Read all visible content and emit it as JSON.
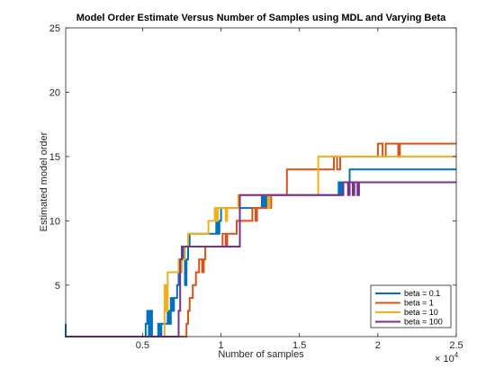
{
  "chart_data": {
    "type": "line",
    "title": "Model Order Estimate Versus Number of Samples using MDL and Varying Beta",
    "xlabel": "Number of samples",
    "ylabel": "Estimated model order",
    "x_exponent_label": "× 10",
    "x_exponent_power": "4",
    "xlim": [
      100,
      25000
    ],
    "ylim": [
      1,
      25
    ],
    "x_ticks": [
      5000,
      10000,
      15000,
      20000,
      25000
    ],
    "x_tick_labels": [
      "0.5",
      "1",
      "1.5",
      "2",
      "2.5"
    ],
    "y_ticks": [
      5,
      10,
      15,
      20,
      25
    ],
    "y_tick_labels": [
      "5",
      "10",
      "15",
      "20",
      "25"
    ],
    "grid": false,
    "legend_position": "bottom-right",
    "series": [
      {
        "name": "beta = 0.1",
        "color": "#0072BD",
        "points": [
          [
            100,
            2
          ],
          [
            100,
            1
          ],
          [
            5200,
            1
          ],
          [
            5200,
            2
          ],
          [
            5300,
            2
          ],
          [
            5300,
            3
          ],
          [
            5400,
            3
          ],
          [
            5400,
            1
          ],
          [
            5500,
            1
          ],
          [
            5500,
            3
          ],
          [
            5600,
            3
          ],
          [
            5600,
            1
          ],
          [
            6000,
            1
          ],
          [
            6000,
            2
          ],
          [
            6100,
            2
          ],
          [
            6100,
            1
          ],
          [
            6200,
            1
          ],
          [
            6200,
            2
          ],
          [
            6600,
            2
          ],
          [
            6600,
            3
          ],
          [
            6700,
            3
          ],
          [
            6700,
            2
          ],
          [
            6800,
            2
          ],
          [
            6800,
            4
          ],
          [
            6900,
            4
          ],
          [
            6900,
            3
          ],
          [
            7000,
            3
          ],
          [
            7000,
            4
          ],
          [
            7200,
            4
          ],
          [
            7200,
            5
          ],
          [
            7300,
            5
          ],
          [
            7300,
            6
          ],
          [
            7400,
            6
          ],
          [
            7400,
            7
          ],
          [
            7600,
            7
          ],
          [
            7600,
            8
          ],
          [
            7700,
            8
          ],
          [
            7700,
            5
          ],
          [
            7800,
            5
          ],
          [
            7800,
            7
          ],
          [
            7900,
            7
          ],
          [
            7900,
            8
          ],
          [
            8000,
            8
          ],
          [
            8000,
            9
          ],
          [
            9700,
            9
          ],
          [
            9700,
            10
          ],
          [
            9800,
            10
          ],
          [
            9800,
            9
          ],
          [
            9900,
            9
          ],
          [
            9900,
            10
          ],
          [
            10000,
            10
          ],
          [
            10000,
            11
          ],
          [
            12600,
            11
          ],
          [
            12600,
            12
          ],
          [
            12700,
            12
          ],
          [
            12700,
            11
          ],
          [
            12800,
            11
          ],
          [
            12800,
            12
          ],
          [
            12900,
            12
          ],
          [
            12900,
            11
          ],
          [
            13000,
            11
          ],
          [
            13000,
            12
          ],
          [
            17500,
            12
          ],
          [
            17500,
            13
          ],
          [
            17600,
            13
          ],
          [
            17600,
            12
          ],
          [
            17700,
            12
          ],
          [
            17700,
            13
          ],
          [
            18200,
            13
          ],
          [
            18200,
            14
          ],
          [
            25000,
            14
          ]
        ]
      },
      {
        "name": "beta = 1",
        "color": "#D95319",
        "points": [
          [
            100,
            1
          ],
          [
            7800,
            1
          ],
          [
            7800,
            2
          ],
          [
            7900,
            2
          ],
          [
            7900,
            3
          ],
          [
            8000,
            3
          ],
          [
            8000,
            4
          ],
          [
            8200,
            4
          ],
          [
            8200,
            5
          ],
          [
            8400,
            5
          ],
          [
            8400,
            6
          ],
          [
            8600,
            6
          ],
          [
            8600,
            7
          ],
          [
            8800,
            7
          ],
          [
            8800,
            6
          ],
          [
            8900,
            6
          ],
          [
            8900,
            7
          ],
          [
            9000,
            7
          ],
          [
            9000,
            8
          ],
          [
            10100,
            8
          ],
          [
            10100,
            9
          ],
          [
            10300,
            9
          ],
          [
            10300,
            8
          ],
          [
            10400,
            8
          ],
          [
            10400,
            9
          ],
          [
            11000,
            9
          ],
          [
            11000,
            10
          ],
          [
            12000,
            10
          ],
          [
            12000,
            11
          ],
          [
            12200,
            11
          ],
          [
            12200,
            10
          ],
          [
            12300,
            10
          ],
          [
            12300,
            11
          ],
          [
            13200,
            11
          ],
          [
            13200,
            12
          ],
          [
            14200,
            12
          ],
          [
            14200,
            14
          ],
          [
            17200,
            14
          ],
          [
            17200,
            15
          ],
          [
            17400,
            15
          ],
          [
            17400,
            14
          ],
          [
            17600,
            14
          ],
          [
            17600,
            15
          ],
          [
            20000,
            15
          ],
          [
            20000,
            16
          ],
          [
            20300,
            16
          ],
          [
            20300,
            15
          ],
          [
            20500,
            15
          ],
          [
            20500,
            16
          ],
          [
            21300,
            16
          ],
          [
            21300,
            15
          ],
          [
            21400,
            15
          ],
          [
            21400,
            16
          ],
          [
            25000,
            16
          ]
        ]
      },
      {
        "name": "beta = 10",
        "color": "#EDB120",
        "points": [
          [
            100,
            1
          ],
          [
            6400,
            1
          ],
          [
            6400,
            5
          ],
          [
            6500,
            5
          ],
          [
            6500,
            3
          ],
          [
            6600,
            3
          ],
          [
            6600,
            6
          ],
          [
            7300,
            6
          ],
          [
            7300,
            7
          ],
          [
            7400,
            7
          ],
          [
            7400,
            6
          ],
          [
            7500,
            6
          ],
          [
            7500,
            7
          ],
          [
            7700,
            7
          ],
          [
            7700,
            8
          ],
          [
            7900,
            8
          ],
          [
            7900,
            9
          ],
          [
            9200,
            9
          ],
          [
            9200,
            10
          ],
          [
            9600,
            10
          ],
          [
            9600,
            11
          ],
          [
            9700,
            11
          ],
          [
            9700,
            10
          ],
          [
            9800,
            10
          ],
          [
            9800,
            11
          ],
          [
            10300,
            11
          ],
          [
            10300,
            10
          ],
          [
            10400,
            10
          ],
          [
            10400,
            11
          ],
          [
            11100,
            11
          ],
          [
            11100,
            12
          ],
          [
            13000,
            12
          ],
          [
            13000,
            11
          ],
          [
            13100,
            11
          ],
          [
            13100,
            12
          ],
          [
            16200,
            12
          ],
          [
            16200,
            15
          ],
          [
            25000,
            15
          ]
        ]
      },
      {
        "name": "beta = 100",
        "color": "#7E2F8E",
        "points": [
          [
            100,
            1
          ],
          [
            7300,
            1
          ],
          [
            7300,
            3
          ],
          [
            7400,
            3
          ],
          [
            7400,
            7
          ],
          [
            7500,
            7
          ],
          [
            7500,
            8
          ],
          [
            11200,
            8
          ],
          [
            11200,
            12
          ],
          [
            17800,
            12
          ],
          [
            17800,
            13
          ],
          [
            18100,
            13
          ],
          [
            18100,
            12
          ],
          [
            18200,
            12
          ],
          [
            18200,
            13
          ],
          [
            18400,
            13
          ],
          [
            18400,
            12
          ],
          [
            18500,
            12
          ],
          [
            18500,
            13
          ],
          [
            18700,
            13
          ],
          [
            18700,
            12
          ],
          [
            18800,
            12
          ],
          [
            18800,
            13
          ],
          [
            25000,
            13
          ]
        ]
      }
    ]
  }
}
